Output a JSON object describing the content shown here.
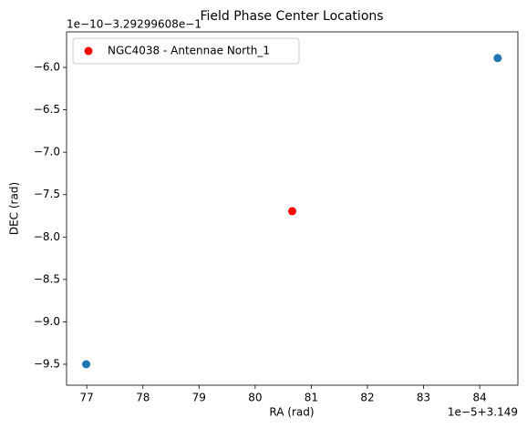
{
  "chart_data": {
    "type": "scatter",
    "title": "Field Phase Center Locations",
    "x_label": "RA (rad)",
    "y_label": "DEC (rad)",
    "x_offset_label": "1e−5+3.149",
    "y_offset_label": "1e−10−3.29299608e−1",
    "xlim": [
      76.64,
      84.68
    ],
    "ylim": [
      -9.747,
      -5.581
    ],
    "xticks": [
      77,
      78,
      79,
      80,
      81,
      82,
      83,
      84
    ],
    "yticks": [
      {
        "value": -6.0,
        "label": "−6.0"
      },
      {
        "value": -6.5,
        "label": "−6.5"
      },
      {
        "value": -7.0,
        "label": "−7.0"
      },
      {
        "value": -7.5,
        "label": "−7.5"
      },
      {
        "value": -8.0,
        "label": "−8.0"
      },
      {
        "value": -8.5,
        "label": "−8.5"
      },
      {
        "value": -9.0,
        "label": "−9.0"
      },
      {
        "value": -9.5,
        "label": "−9.5"
      }
    ],
    "legend": "upper left",
    "series": [
      {
        "color": "#1f77b4",
        "x": [
          76.99,
          84.32
        ],
        "values": [
          -9.5,
          -5.89
        ]
      },
      {
        "name": "NGC4038 - Antennae North_1",
        "color": "#ff0000",
        "x": [
          80.66
        ],
        "values": [
          -7.695
        ]
      }
    ]
  }
}
